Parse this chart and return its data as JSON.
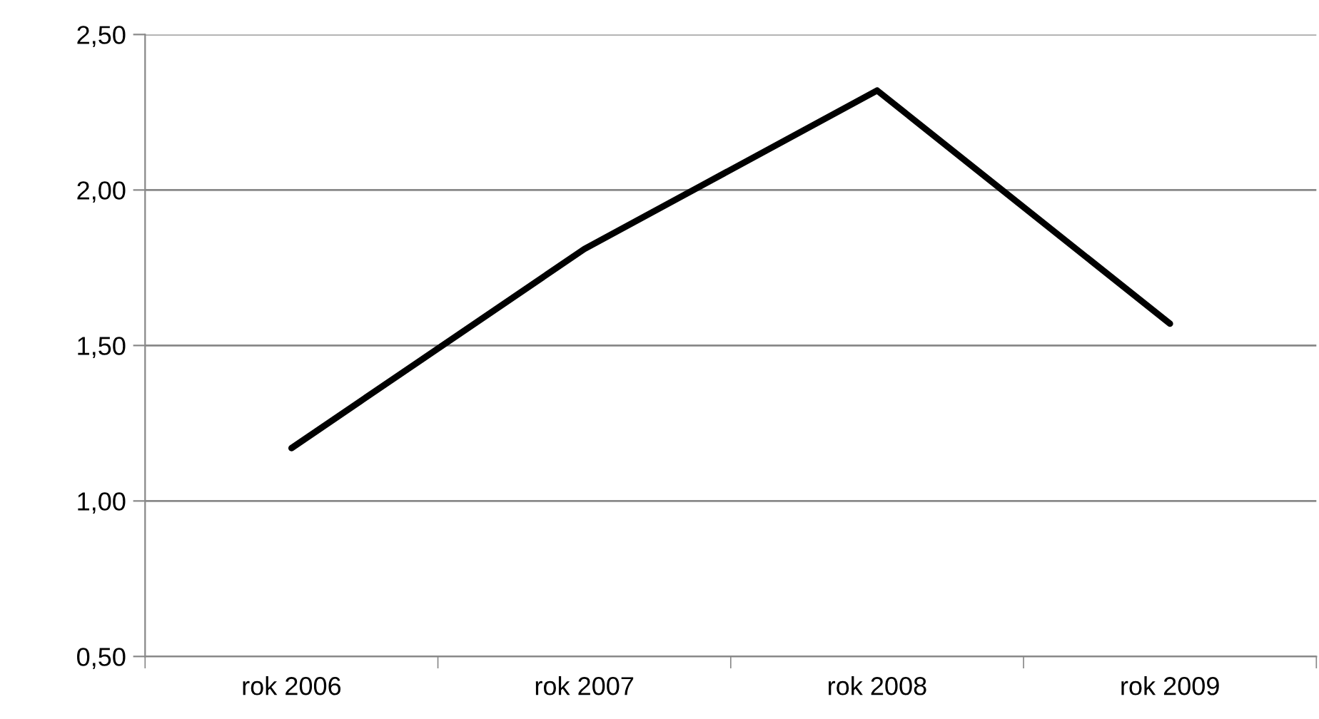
{
  "chart_data": {
    "type": "line",
    "categories": [
      "rok 2006",
      "rok 2007",
      "rok 2008",
      "rok 2009"
    ],
    "series": [
      {
        "color": "#000000",
        "values": [
          1.17,
          1.81,
          2.32,
          1.57
        ]
      }
    ],
    "ylim": [
      0.5,
      2.5
    ],
    "yticks": [
      {
        "value": 0.5,
        "label": "0,50"
      },
      {
        "value": 1.0,
        "label": "1,00"
      },
      {
        "value": 1.5,
        "label": "1,50"
      },
      {
        "value": 2.0,
        "label": "2,00"
      },
      {
        "value": 2.5,
        "label": "2,50"
      }
    ],
    "grid": "y",
    "marker": "none",
    "line_style": "solid"
  }
}
